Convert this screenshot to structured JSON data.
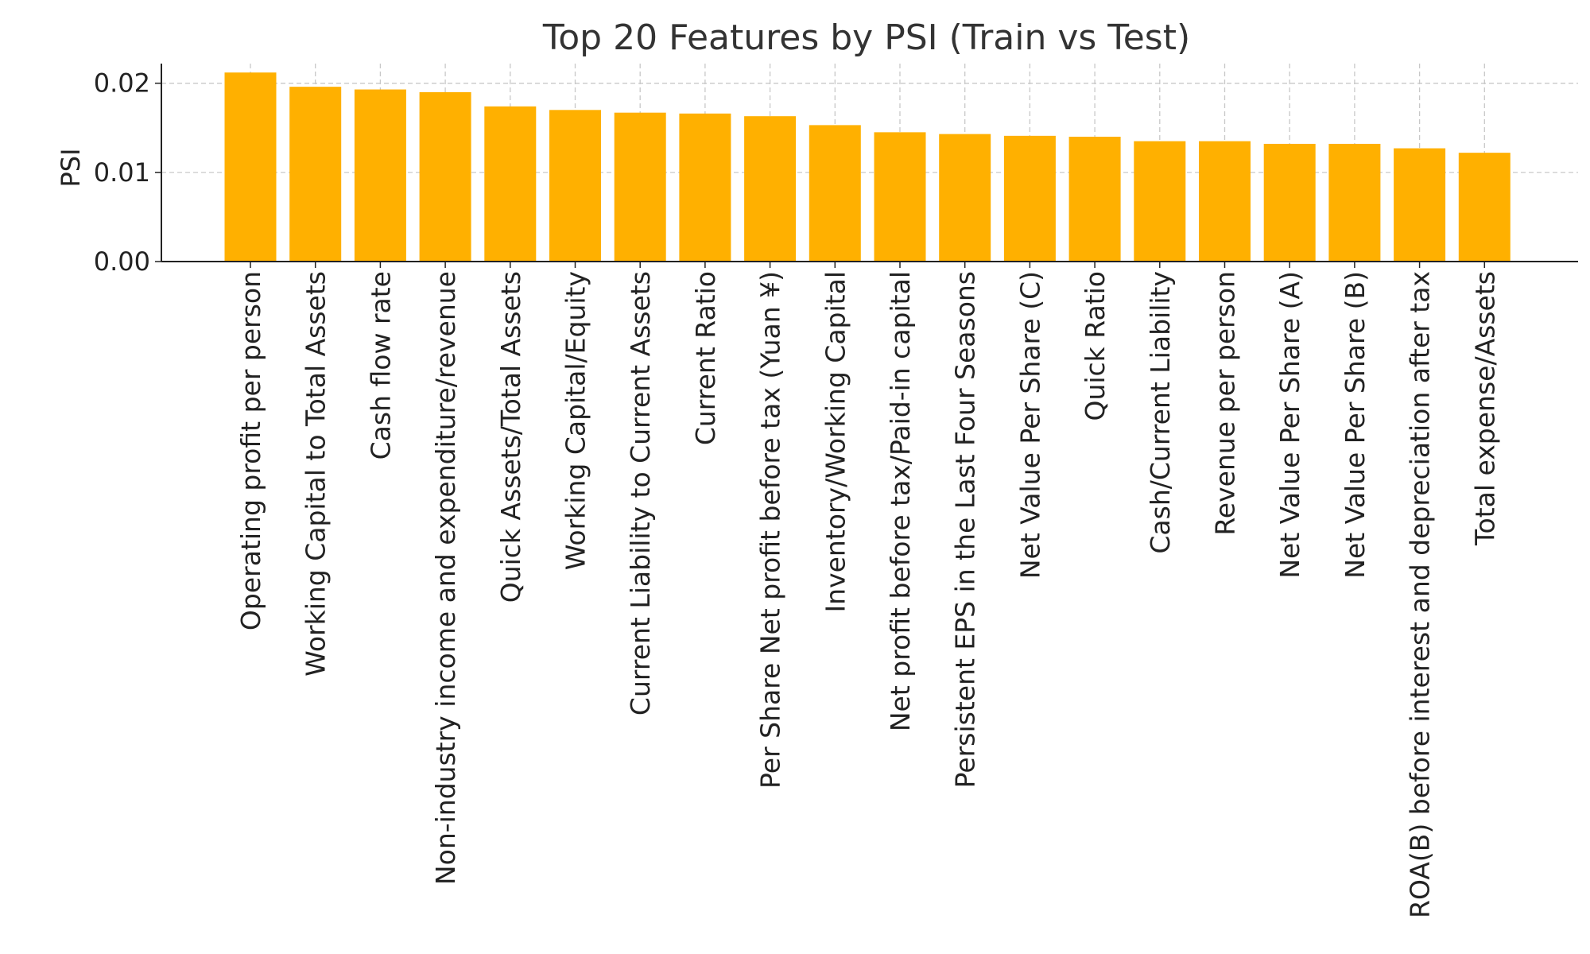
{
  "chart_data": {
    "type": "bar",
    "title": "Top 20 Features by PSI (Train vs Test)",
    "xlabel": "",
    "ylabel": "PSI",
    "ylim": [
      0,
      0.0222
    ],
    "yticks": [
      0.0,
      0.01,
      0.02
    ],
    "ytick_labels": [
      "0.00",
      "0.01",
      "0.02"
    ],
    "grid": true,
    "bar_color": "#ffb000",
    "categories": [
      "Operating profit per person",
      "Working Capital to Total Assets",
      "Cash flow rate",
      "Non-industry income and expenditure/revenue",
      "Quick Assets/Total Assets",
      "Working Capital/Equity",
      "Current Liability to Current Assets",
      "Current Ratio",
      "Per Share Net profit before tax (Yuan ¥)",
      "Inventory/Working Capital",
      "Net profit before tax/Paid-in capital",
      "Persistent EPS in the Last Four Seasons",
      "Net Value Per Share (C)",
      "Quick Ratio",
      "Cash/Current Liability",
      "Revenue per person",
      "Net Value Per Share (A)",
      "Net Value Per Share (B)",
      "ROA(B) before interest and depreciation after tax",
      "Total expense/Assets"
    ],
    "values": [
      0.0212,
      0.0196,
      0.0193,
      0.019,
      0.0174,
      0.017,
      0.0167,
      0.0166,
      0.0163,
      0.0153,
      0.0145,
      0.0143,
      0.0141,
      0.014,
      0.0135,
      0.0135,
      0.0132,
      0.0132,
      0.0127,
      0.0122
    ]
  }
}
